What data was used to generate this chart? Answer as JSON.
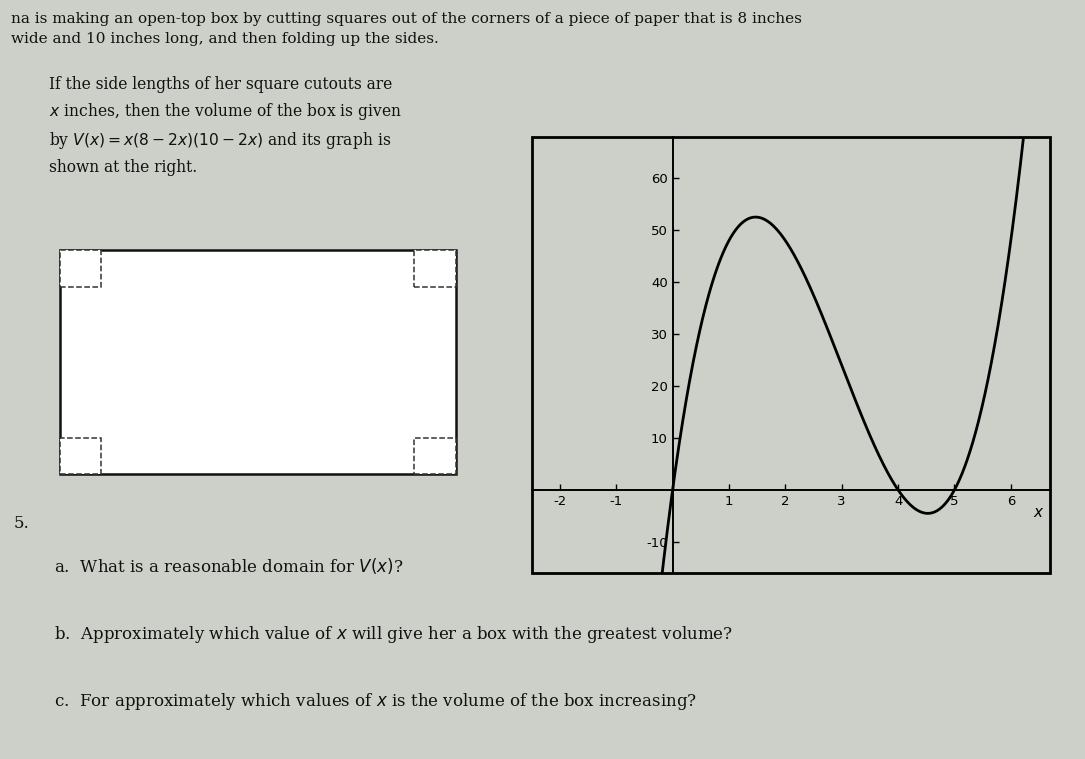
{
  "background_color": "#cdd0c8",
  "graph_xlim": [
    -2.5,
    6.7
  ],
  "graph_ylim": [
    -16,
    68
  ],
  "graph_xticks": [
    -2,
    -1,
    0,
    1,
    2,
    3,
    4,
    5,
    6
  ],
  "graph_yticks": [
    -10,
    10,
    20,
    30,
    40,
    50,
    60
  ],
  "curve_color": "#000000",
  "curve_linewidth": 2.0,
  "axis_linewidth": 1.4,
  "title_line1": "na is making an open-top box by cutting squares out of the corners of a piece of paper that is 8 inches",
  "title_line2": "wide and 10 inches long, and then folding up the sides.",
  "body_text": "If the side lengths of her square cutouts are\n$x$ inches, then the volume of the box is given\nby $V(x) = x(8-2x)(10-2x)$ and its graph is\nshown at the right.",
  "question_5": "5.",
  "question_a": "a.  What is a reasonable domain for $V(x)$?",
  "question_b": "b.  Approximately which value of $x$ will give her a box with the greatest volume?",
  "question_c": "c.  For approximately which values of $x$ is the volume of the box increasing?",
  "text_color": "#111111",
  "font_size_title": 11.0,
  "font_size_body": 11.2,
  "font_size_questions": 12.0,
  "paper_color": "#ffffff",
  "paper_edge_color": "#111111",
  "paper_linewidth": 1.8
}
